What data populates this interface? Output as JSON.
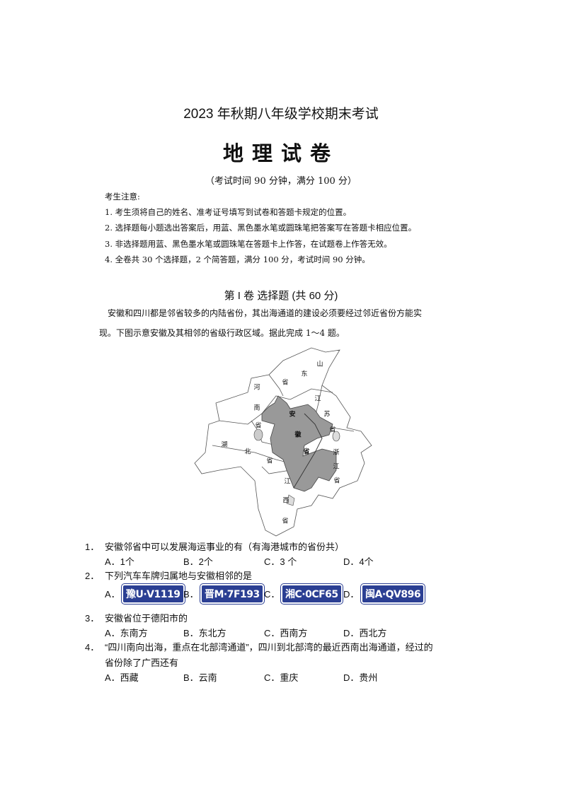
{
  "header": {
    "title": "2023 年秋期八年级学校期末考试",
    "subject": "地理试卷",
    "exam_info": "（考试时间 90 分钟，满分 100 分）"
  },
  "notes": {
    "heading": "考生注意:",
    "items": [
      "1. 考生须将自己的姓名、准考证号填写到试卷和答题卡规定的位置。",
      "2. 选择题每小题选出答案后，用蓝、黑色墨水笔或圆珠笔把答案写在答题卡相应位置。",
      "3. 非选择题用蓝、黑色墨水笔或圆珠笔在答题卡上作答，在试题卷上作答无效。",
      "4. 全卷共 30 个选择题，2 个简答题，满分 100 分，考试时间 90 分钟。"
    ]
  },
  "section": {
    "heading": "第 I 卷   选择题 (共 60 分)",
    "intro_line1": "安徽和四川都是邻省较多的内陆省份，其出海通道的建设必须要经过邻近省份方能实",
    "intro_line2": "现。下图示意安徽及其相邻的省级行政区域。据此完成 1～4 题。"
  },
  "map": {
    "highlight_color": "#999999",
    "labels": [
      "山",
      "东",
      "省",
      "河",
      "南",
      "江",
      "安",
      "苏",
      "省",
      "省",
      "徽",
      "湖",
      "北",
      "省",
      "浙",
      "省",
      "江",
      "江",
      "省",
      "西",
      "省"
    ]
  },
  "questions": [
    {
      "num": "1．",
      "text": "安徽邻省中可以发展海运事业的有（有海港城市的省份共）",
      "options": [
        "A．1个",
        "B．2个",
        "C．3 个",
        "D．4个"
      ]
    },
    {
      "num": "2．",
      "text": "下列汽车车牌归属地与安徽相邻的是",
      "options": [
        "A．",
        "B．",
        "C．",
        "D．"
      ],
      "plates": [
        "豫U·V1119",
        "晋M·7F193",
        "湘C·0CF65",
        "闽A·QV896"
      ],
      "plate_color": "#2b3f93"
    },
    {
      "num": "3．",
      "text": "安徽省位于德阳市的",
      "options": [
        "A．东南方",
        "B．东北方",
        "C．西南方",
        "D．西北方"
      ]
    },
    {
      "num": "4．",
      "text": "“四川南向出海，重点在北部湾通道”，四川到北部湾的最近西南出海通道，经过的",
      "text2": "省份除了广西还有",
      "options": [
        "A．西藏",
        "B．云南",
        "C．重庆",
        "D．贵州"
      ]
    }
  ]
}
